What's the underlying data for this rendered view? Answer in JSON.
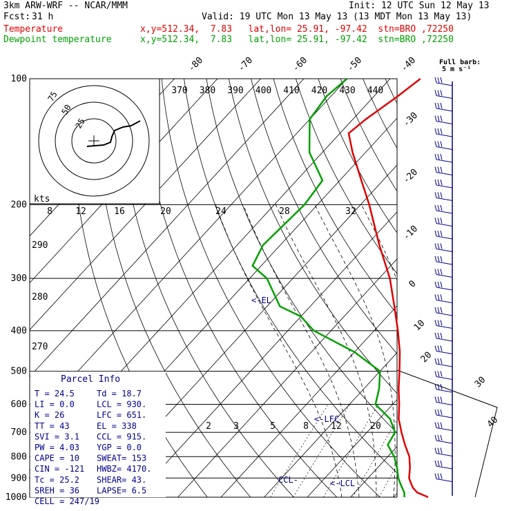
{
  "header": {
    "model": "3km ARW-WRF -- NCAR/MMM",
    "init": "Init: 12 UTC Sun 12 May 13",
    "fcst_label": "Fcst:",
    "fcst_value": "31 h",
    "valid": "Valid: 19 UTC Mon 13 May 13 (13 MDT Mon 13 May 13)",
    "series": [
      {
        "name": "Temperature",
        "info": "x,y=512.34,  7.83   lat,lon= 25.91, -97.42  stn=BRO ,72250",
        "color": "#e00000"
      },
      {
        "name": "Dewpoint temperature",
        "info": "x,y=512.34,  7.83   lat,lon= 25.91, -97.42  stn=BRO ,72250",
        "color": "#00a000"
      }
    ]
  },
  "chart_data": {
    "type": "line",
    "chart_kind": "skew-T log-p sounding",
    "y_axis": {
      "scale": "log",
      "ylim": [
        1000,
        100
      ],
      "ticks": [
        100,
        200,
        300,
        400,
        500,
        600,
        700,
        800,
        900,
        1000
      ]
    },
    "x_axis": {
      "unit": "C",
      "isotherm_labels": [
        -80,
        -70,
        -60,
        -50,
        -40,
        -30,
        -20,
        -10,
        0,
        10,
        20,
        30,
        40
      ]
    },
    "theta_labels": [
      370,
      380,
      390,
      400,
      410,
      420,
      430,
      440
    ],
    "theta_side_labels": [
      290,
      280,
      270
    ],
    "mixing_ratio_labels": [
      "2",
      "3",
      "5",
      "8",
      "12",
      "20"
    ],
    "hodograph_axis_labels": [
      "8",
      "12",
      "16",
      "20",
      "24",
      "28",
      "32"
    ],
    "hodograph_unit": "kts",
    "hodograph_rings": [
      "75",
      "50",
      "25"
    ],
    "temperature": [
      {
        "p": 1000,
        "t": 28.0
      },
      {
        "p": 975,
        "t": 24.5
      },
      {
        "p": 950,
        "t": 22.5
      },
      {
        "p": 925,
        "t": 21.0
      },
      {
        "p": 900,
        "t": 19.5
      },
      {
        "p": 850,
        "t": 17.5
      },
      {
        "p": 800,
        "t": 15.0
      },
      {
        "p": 750,
        "t": 11.5
      },
      {
        "p": 700,
        "t": 8.0
      },
      {
        "p": 650,
        "t": 4.5
      },
      {
        "p": 600,
        "t": 1.5
      },
      {
        "p": 550,
        "t": -2.0
      },
      {
        "p": 500,
        "t": -5.5
      },
      {
        "p": 450,
        "t": -9.5
      },
      {
        "p": 400,
        "t": -14.5
      },
      {
        "p": 350,
        "t": -20.5
      },
      {
        "p": 300,
        "t": -27.5
      },
      {
        "p": 250,
        "t": -37.0
      },
      {
        "p": 200,
        "t": -48.0
      },
      {
        "p": 175,
        "t": -55.0
      },
      {
        "p": 150,
        "t": -63.0
      },
      {
        "p": 135,
        "t": -68.0
      },
      {
        "p": 125,
        "t": -67.0
      },
      {
        "p": 110,
        "t": -64.5
      },
      {
        "p": 100,
        "t": -63.0
      }
    ],
    "dewpoint": [
      {
        "p": 1000,
        "t": 22.5
      },
      {
        "p": 975,
        "t": 21.5
      },
      {
        "p": 950,
        "t": 20.0
      },
      {
        "p": 925,
        "t": 18.5
      },
      {
        "p": 900,
        "t": 17.0
      },
      {
        "p": 850,
        "t": 14.5
      },
      {
        "p": 800,
        "t": 11.5
      },
      {
        "p": 750,
        "t": 7.5
      },
      {
        "p": 700,
        "t": 6.5
      },
      {
        "p": 650,
        "t": 2.5
      },
      {
        "p": 600,
        "t": -4.0
      },
      {
        "p": 550,
        "t": -6.5
      },
      {
        "p": 500,
        "t": -10.0
      },
      {
        "p": 450,
        "t": -20.0
      },
      {
        "p": 400,
        "t": -34.0
      },
      {
        "p": 370,
        "t": -40.0
      },
      {
        "p": 350,
        "t": -47.0
      },
      {
        "p": 300,
        "t": -56.0
      },
      {
        "p": 280,
        "t": -62.0
      },
      {
        "p": 250,
        "t": -64.0
      },
      {
        "p": 200,
        "t": -63.0
      },
      {
        "p": 175,
        "t": -64.0
      },
      {
        "p": 150,
        "t": -73.0
      },
      {
        "p": 125,
        "t": -80.0
      },
      {
        "p": 110,
        "t": -81.0
      },
      {
        "p": 100,
        "t": -80.0
      }
    ],
    "annotations": [
      {
        "label": "<-EL",
        "p": 338
      },
      {
        "label": "<-LFC",
        "p": 651
      },
      {
        "label": "<-LCL",
        "p": 930
      },
      {
        "label": "CCL-",
        "p": 915
      }
    ],
    "wind_barb_label": "Full barb:\n5 m s⁻¹"
  },
  "parcel_info": {
    "title": "Parcel Info",
    "rows": [
      [
        "T   =    24.5",
        "Td =  18.7"
      ],
      [
        "LI  =     0.0",
        "LCL =  930."
      ],
      [
        "K   =      26",
        "LFC =  651."
      ],
      [
        "TT  =      43",
        "EL  =   338"
      ],
      [
        "SVI =     3.1",
        "CCL =  915."
      ],
      [
        "PW  =    4.03",
        "YGP =   0.0"
      ],
      [
        "CAPE =     10",
        "SWEAT=   153"
      ],
      [
        "CIN =    -121",
        "HWBZ= 4170."
      ],
      [
        "Tc  =    25.2",
        "SHEAR=  43."
      ],
      [
        "SREH =     36",
        "LAPSE=   6.5"
      ],
      [
        "CELL = 247/19",
        ""
      ]
    ]
  },
  "colors": {
    "temperature": "#e00000",
    "dewpoint": "#00a000",
    "frame": "#000000",
    "barbs": "#00008b",
    "parcel_text": "#00008b"
  }
}
